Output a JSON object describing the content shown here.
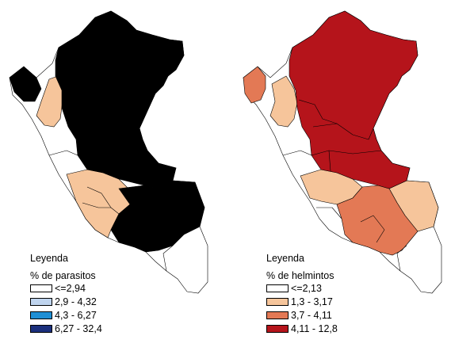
{
  "maps": [
    {
      "legend_title": "Leyenda",
      "legend_subtitle": "% de parasitos",
      "classes": [
        {
          "label": "<=2,94",
          "color": "#ffffff"
        },
        {
          "label": "2,9 - 4,32",
          "color": "#bfd4ee"
        },
        {
          "label": "4,3 - 6,27",
          "color": "#1f8fd4"
        },
        {
          "label": "6,27 - 32,4",
          "color": "#1b2f7c"
        }
      ]
    },
    {
      "legend_title": "Leyenda",
      "legend_subtitle": "% de helmintos",
      "classes": [
        {
          "label": "<=2,13",
          "color": "#ffffff"
        },
        {
          "label": "1,3 - 3,17",
          "color": "#f6c59b"
        },
        {
          "label": "3,7 - 4,11",
          "color": "#e37955"
        },
        {
          "label": "4,11 - 12,8",
          "color": "#b5141b"
        }
      ]
    }
  ]
}
